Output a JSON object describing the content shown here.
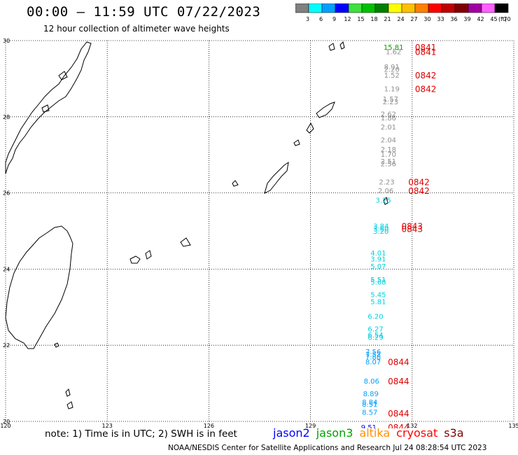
{
  "header": {
    "title": "00:00 – 11:59 UTC 07/22/2023",
    "subtitle": "12 hour collection of altimeter wave heights"
  },
  "colorbar": {
    "ticks": [
      "3",
      "6",
      "9",
      "12",
      "15",
      "18",
      "21",
      "24",
      "27",
      "30",
      "33",
      "36",
      "39",
      "42",
      "45",
      "70"
    ],
    "unit": "(ft)",
    "colors": [
      "#808080",
      "#00ffff",
      "#00a0ff",
      "#0000ff",
      "#40e040",
      "#00c000",
      "#008000",
      "#ffff00",
      "#ffc000",
      "#ff8000",
      "#ff0000",
      "#c00000",
      "#800000",
      "#a000a0",
      "#ff60ff",
      "#000000"
    ]
  },
  "map": {
    "lon_labels": [
      "120",
      "123",
      "126",
      "129",
      "132",
      "135"
    ],
    "lat_labels": [
      "30",
      "28",
      "26",
      "24",
      "22",
      "20"
    ]
  },
  "points": [
    {
      "lon": 131.45,
      "lat": 29.82,
      "swh": "15.81",
      "color": "#00a000"
    },
    {
      "lon": 131.45,
      "lat": 29.7,
      "swh": "1.62",
      "color": "#909090"
    },
    {
      "lon": 131.4,
      "lat": 29.3,
      "swh": "8.91",
      "color": "#909090"
    },
    {
      "lon": 131.4,
      "lat": 29.24,
      "swh": "2.20",
      "color": "#909090"
    },
    {
      "lon": 131.4,
      "lat": 29.08,
      "swh": "1.52",
      "color": "#909090"
    },
    {
      "lon": 131.4,
      "lat": 28.72,
      "swh": "1.19",
      "color": "#909090"
    },
    {
      "lon": 131.36,
      "lat": 28.46,
      "swh": "1.57",
      "color": "#909090"
    },
    {
      "lon": 131.36,
      "lat": 28.38,
      "swh": "2.23",
      "color": "#909090"
    },
    {
      "lon": 131.3,
      "lat": 28.06,
      "swh": "2.62",
      "color": "#909090"
    },
    {
      "lon": 131.3,
      "lat": 27.96,
      "swh": "1.86",
      "color": "#909090"
    },
    {
      "lon": 131.3,
      "lat": 27.72,
      "swh": "2.01",
      "color": "#909090"
    },
    {
      "lon": 131.3,
      "lat": 27.38,
      "swh": "2.04",
      "color": "#909090"
    },
    {
      "lon": 131.3,
      "lat": 27.13,
      "swh": "2.18",
      "color": "#909090"
    },
    {
      "lon": 131.3,
      "lat": 27.0,
      "swh": "1.70",
      "color": "#909090"
    },
    {
      "lon": 131.3,
      "lat": 26.82,
      "swh": "2.51",
      "color": "#909090"
    },
    {
      "lon": 131.3,
      "lat": 26.76,
      "swh": "2.56",
      "color": "#909090"
    },
    {
      "lon": 131.25,
      "lat": 26.28,
      "swh": "2.23",
      "color": "#909090"
    },
    {
      "lon": 131.22,
      "lat": 26.05,
      "swh": "2.06",
      "color": "#909090"
    },
    {
      "lon": 131.15,
      "lat": 25.8,
      "swh": "3.25",
      "color": "#00d0e0"
    },
    {
      "lon": 131.08,
      "lat": 25.12,
      "swh": "3.84",
      "color": "#00d0e0"
    },
    {
      "lon": 131.08,
      "lat": 25.05,
      "swh": "3.60",
      "color": "#00d0e0"
    },
    {
      "lon": 131.08,
      "lat": 24.98,
      "swh": "3.20",
      "color": "#00d0e0"
    },
    {
      "lon": 131.0,
      "lat": 24.41,
      "swh": "4.01",
      "color": "#00d0e0"
    },
    {
      "lon": 131.0,
      "lat": 24.26,
      "swh": "3.91",
      "color": "#00d0e0"
    },
    {
      "lon": 131.0,
      "lat": 24.06,
      "swh": "5.07",
      "color": "#00d0e0"
    },
    {
      "lon": 131.0,
      "lat": 23.71,
      "swh": "5.51",
      "color": "#00d0e0"
    },
    {
      "lon": 131.0,
      "lat": 23.65,
      "swh": "5.68",
      "color": "#00d0e0"
    },
    {
      "lon": 131.0,
      "lat": 23.32,
      "swh": "5.45",
      "color": "#00d0e0"
    },
    {
      "lon": 131.0,
      "lat": 23.13,
      "swh": "5.81",
      "color": "#00d0e0"
    },
    {
      "lon": 130.92,
      "lat": 22.75,
      "swh": "6.20",
      "color": "#00d0e0"
    },
    {
      "lon": 130.92,
      "lat": 22.42,
      "swh": "6.27",
      "color": "#00d0e0"
    },
    {
      "lon": 130.92,
      "lat": 22.26,
      "swh": "6.54",
      "color": "#00d0e0"
    },
    {
      "lon": 130.92,
      "lat": 22.2,
      "swh": "6.29",
      "color": "#00d0e0"
    },
    {
      "lon": 130.85,
      "lat": 21.82,
      "swh": "7.56",
      "color": "#00a0ff"
    },
    {
      "lon": 130.85,
      "lat": 21.75,
      "swh": "7.52",
      "color": "#00a0ff"
    },
    {
      "lon": 130.85,
      "lat": 21.68,
      "swh": "7.88",
      "color": "#00a0ff"
    },
    {
      "lon": 130.85,
      "lat": 21.55,
      "swh": "8.07",
      "color": "#00a0ff"
    },
    {
      "lon": 130.8,
      "lat": 21.05,
      "swh": "8.06",
      "color": "#00a0ff"
    },
    {
      "lon": 130.78,
      "lat": 20.72,
      "swh": "8.89",
      "color": "#00a0ff"
    },
    {
      "lon": 130.75,
      "lat": 20.5,
      "swh": "8.84",
      "color": "#00a0ff"
    },
    {
      "lon": 130.75,
      "lat": 20.44,
      "swh": "8.51",
      "color": "#00a0ff"
    },
    {
      "lon": 130.75,
      "lat": 20.23,
      "swh": "8.57",
      "color": "#00a0ff"
    },
    {
      "lon": 130.72,
      "lat": 19.83,
      "swh": "9.51",
      "color": "#0000ff"
    }
  ],
  "pass_labels": [
    {
      "lon": 132.4,
      "lat": 29.82,
      "text": "0841"
    },
    {
      "lon": 132.4,
      "lat": 29.7,
      "text": "0841"
    },
    {
      "lon": 132.4,
      "lat": 29.08,
      "text": "0842"
    },
    {
      "lon": 132.4,
      "lat": 28.72,
      "text": "0842"
    },
    {
      "lon": 132.2,
      "lat": 26.28,
      "text": "0842"
    },
    {
      "lon": 132.2,
      "lat": 26.05,
      "text": "0842"
    },
    {
      "lon": 132.0,
      "lat": 25.12,
      "text": "0843"
    },
    {
      "lon": 132.0,
      "lat": 25.05,
      "text": "0843"
    },
    {
      "lon": 131.6,
      "lat": 21.55,
      "text": "0844"
    },
    {
      "lon": 131.6,
      "lat": 21.05,
      "text": "0844"
    },
    {
      "lon": 131.6,
      "lat": 20.2,
      "text": "0844"
    },
    {
      "lon": 131.6,
      "lat": 19.83,
      "text": "0844"
    }
  ],
  "note": "note: 1) Time is in UTC; 2) SWH is in feet",
  "satellites": [
    {
      "name": "jason2",
      "color": "#0000ff"
    },
    {
      "name": "jason3",
      "color": "#00a000"
    },
    {
      "name": "altika",
      "color": "#ff9000"
    },
    {
      "name": "cryosat",
      "color": "#ff0000"
    },
    {
      "name": "s3a",
      "color": "#800000"
    }
  ],
  "credit": "NOAA/NESDIS Center for Satellite Applications and Research    Jul 24 08:28:54 UTC 2023"
}
